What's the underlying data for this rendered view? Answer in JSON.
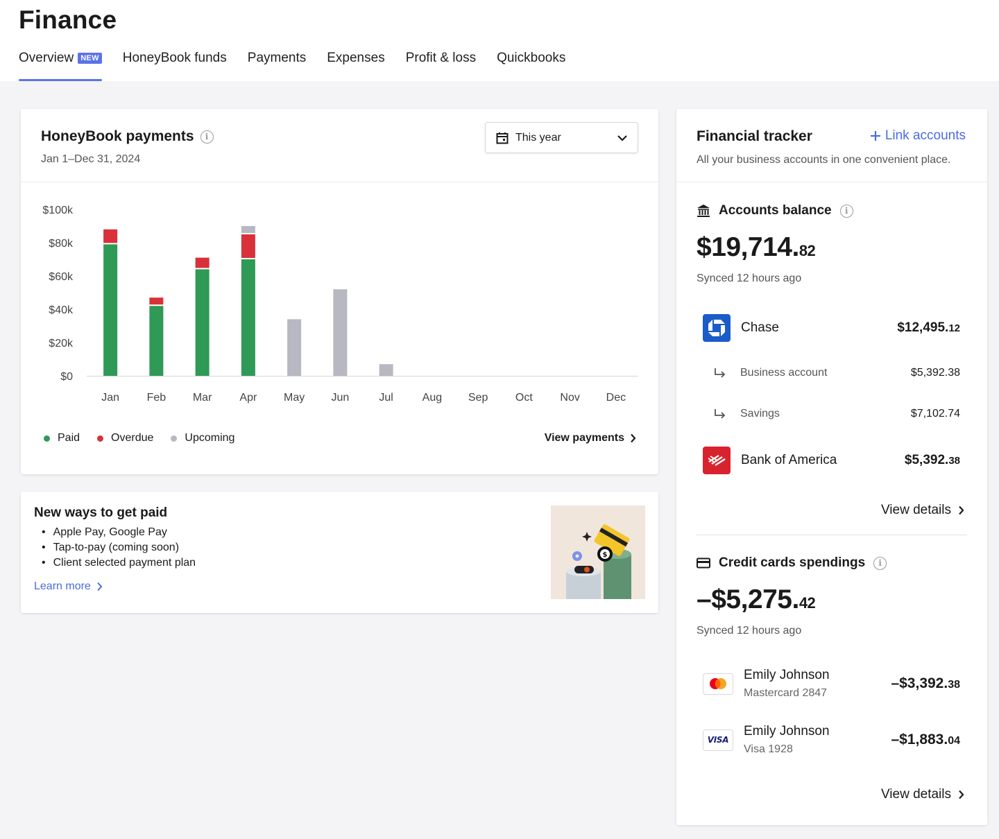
{
  "header": {
    "title": "Finance",
    "tabs": [
      {
        "label": "Overview",
        "badge": "NEW",
        "active": true
      },
      {
        "label": "HoneyBook funds"
      },
      {
        "label": "Payments"
      },
      {
        "label": "Expenses"
      },
      {
        "label": "Profit & loss"
      },
      {
        "label": "Quickbooks"
      }
    ]
  },
  "payments": {
    "title": "HoneyBook payments",
    "date_range": "Jan 1–Dec 31, 2024",
    "period_select": "This year",
    "legend": {
      "paid": "Paid",
      "overdue": "Overdue",
      "upcoming": "Upcoming"
    },
    "view_link": "View payments"
  },
  "chart_data": {
    "type": "bar",
    "stacked": true,
    "categories": [
      "Jan",
      "Feb",
      "Mar",
      "Apr",
      "May",
      "Jun",
      "Jul",
      "Aug",
      "Sep",
      "Oct",
      "Nov",
      "Dec"
    ],
    "series": [
      {
        "name": "Paid",
        "color": "#2e9a55",
        "values": [
          79000,
          42000,
          64000,
          70000,
          0,
          0,
          0,
          0,
          0,
          0,
          0,
          0
        ]
      },
      {
        "name": "Overdue",
        "color": "#d9303a",
        "values": [
          9000,
          5000,
          7000,
          15000,
          0,
          0,
          0,
          0,
          0,
          0,
          0,
          0
        ]
      },
      {
        "name": "Upcoming",
        "color": "#b8b8c2",
        "values": [
          0,
          0,
          0,
          5000,
          34000,
          52000,
          7000,
          0,
          0,
          0,
          0,
          0
        ]
      }
    ],
    "yticks": [
      "$100k",
      "$80k",
      "$60k",
      "$40k",
      "$20k",
      "$0"
    ],
    "ytick_values": [
      100000,
      80000,
      60000,
      40000,
      20000,
      0
    ],
    "ylim": [
      0,
      100000
    ],
    "grid": false,
    "legend_position": "bottom-left"
  },
  "get_paid": {
    "title": "New ways to get paid",
    "items": [
      "Apple Pay, Google Pay",
      "Tap-to-pay (coming soon)",
      "Client selected payment plan"
    ],
    "learn_more": "Learn more"
  },
  "tracker": {
    "title": "Financial tracker",
    "link_accounts": "Link accounts",
    "subtitle": "All your business accounts in one convenient place.",
    "accounts_balance": {
      "title": "Accounts balance",
      "amount_main": "$19,714.",
      "amount_cents": "82",
      "synced": "Synced 12 hours ago",
      "banks": [
        {
          "name": "Chase",
          "amount_main": "$12,495.",
          "amount_cents": "12",
          "color": "#1a5cc8"
        },
        {
          "name": "Business account",
          "amount": "$5,392.38"
        },
        {
          "name": "Savings",
          "amount": "$7,102.74"
        },
        {
          "name": "Bank of America",
          "amount_main": "$5,392.",
          "amount_cents": "38",
          "color": "#d8232f"
        }
      ],
      "view_details": "View details"
    },
    "credit_cards": {
      "title": "Credit cards spendings",
      "amount_main": "–$5,275.",
      "amount_cents": "42",
      "synced": "Synced 12 hours ago",
      "cards": [
        {
          "holder": "Emily Johnson",
          "card": "Mastercard 2847",
          "amount_main": "–$3,392.",
          "amount_cents": "38",
          "icon": "mastercard-icon"
        },
        {
          "holder": "Emily Johnson",
          "card": "Visa 1928",
          "amount_main": "–$1,883.",
          "amount_cents": "04",
          "icon": "visa-icon",
          "logo_text": "VISA"
        }
      ],
      "view_details": "View details"
    }
  }
}
